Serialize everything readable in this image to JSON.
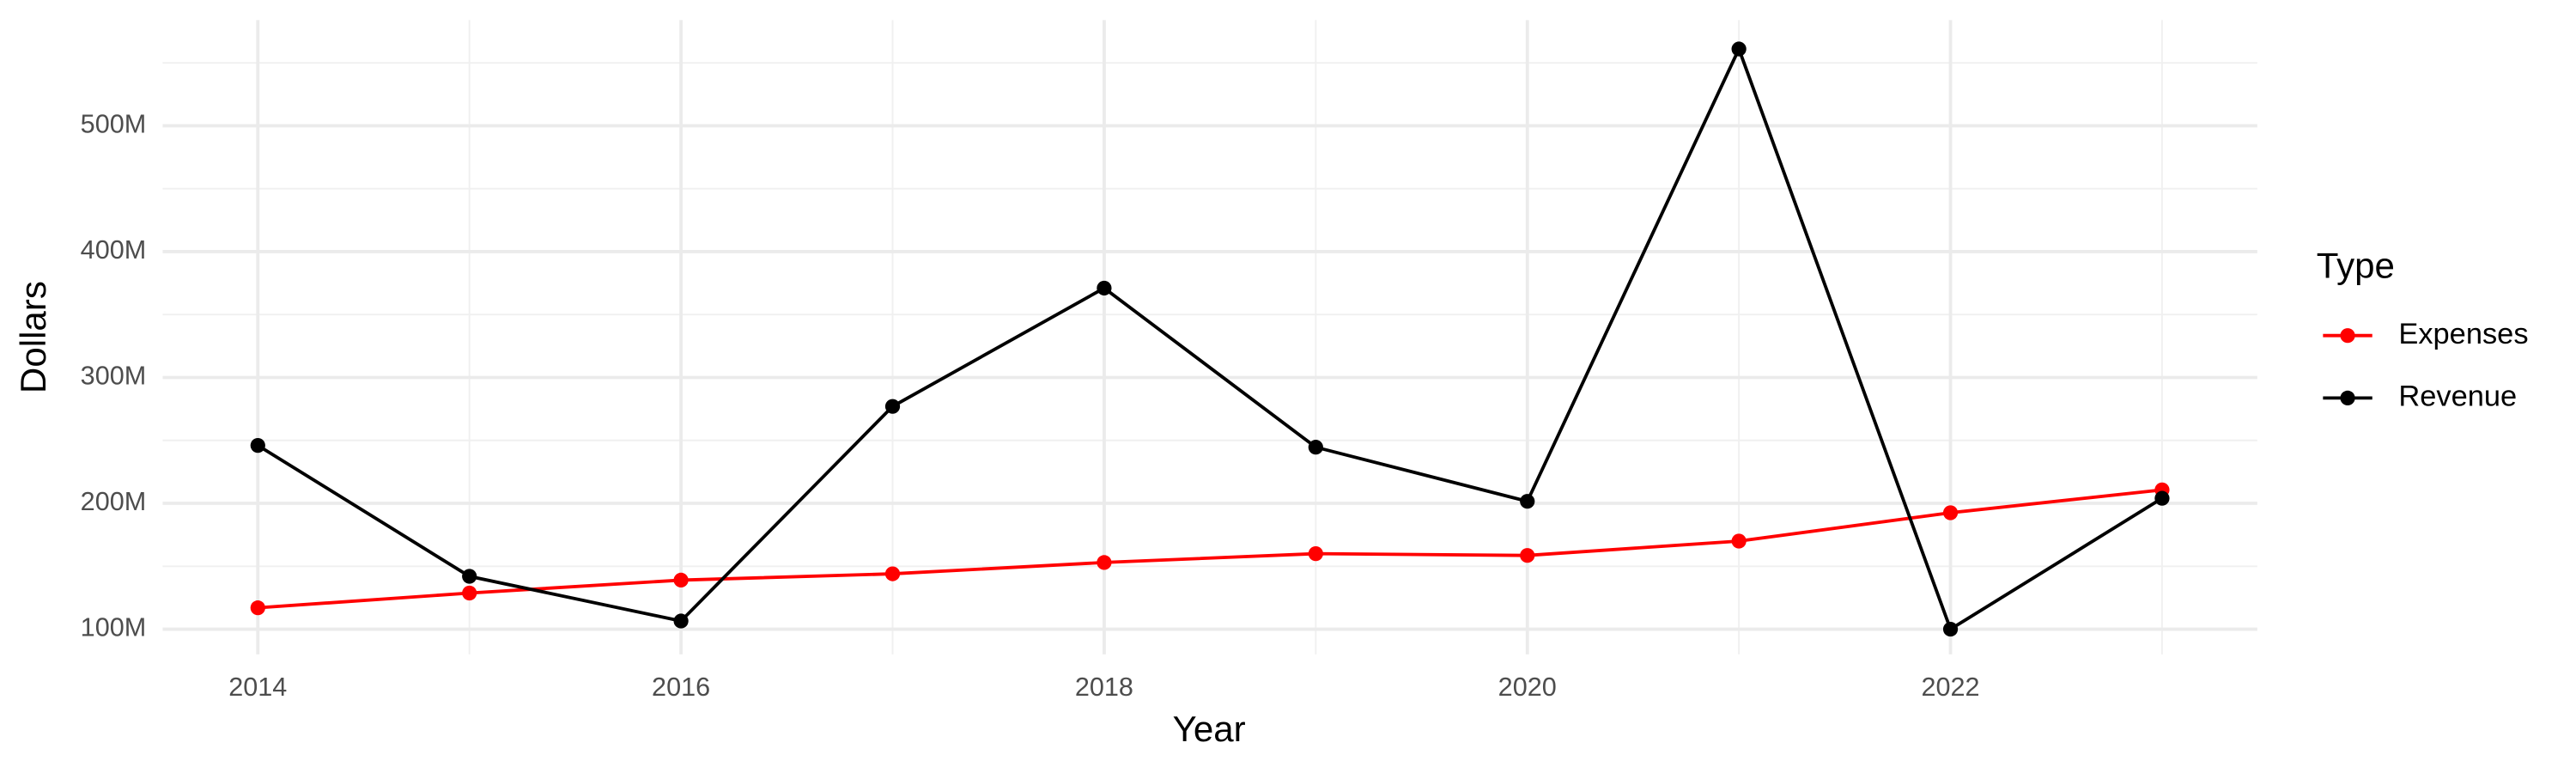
{
  "chart_data": {
    "type": "line",
    "x_label": "Year",
    "y_label": "Dollars",
    "legend_title": "Type",
    "legend_position": "right",
    "x": [
      2014,
      2015,
      2016,
      2017,
      2018,
      2019,
      2020,
      2021,
      2022,
      2023
    ],
    "series": [
      {
        "name": "Expenses",
        "color": "#ff0000",
        "values": [
          117000000,
          128700000,
          139000000,
          144000000,
          153000000,
          160000000,
          158600000,
          170000000,
          192500000,
          210700000
        ]
      },
      {
        "name": "Revenue",
        "color": "#000000",
        "values": [
          246000000,
          142000000,
          106500000,
          277000000,
          371000000,
          244600000,
          201600000,
          561000000,
          100000000,
          204000000
        ]
      }
    ],
    "xlim": [
      2013.55,
      2023.45
    ],
    "xticks": [
      2014,
      2016,
      2018,
      2020,
      2022
    ],
    "ylim": [
      80000000,
      584000000
    ],
    "yticks": [
      {
        "value": 100000000,
        "label": "100M"
      },
      {
        "value": 200000000,
        "label": "200M"
      },
      {
        "value": 300000000,
        "label": "300M"
      },
      {
        "value": 400000000,
        "label": "400M"
      },
      {
        "value": 500000000,
        "label": "500M"
      }
    ],
    "grid": true
  }
}
